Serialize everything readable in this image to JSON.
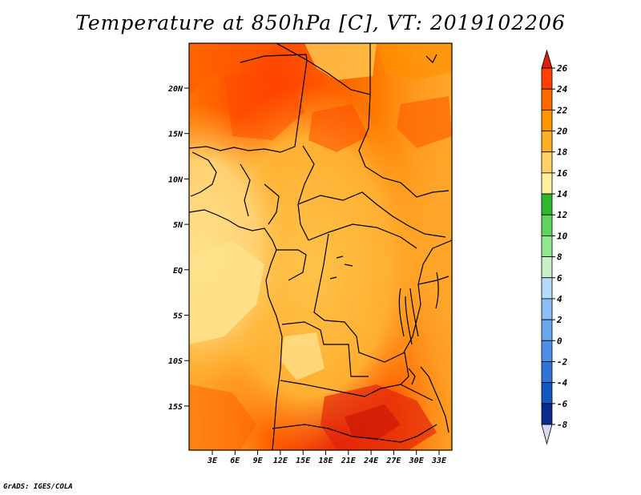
{
  "title": "Temperature at 850hPa [C], VT: 2019102206",
  "credit": "GrADS: IGES/COLA",
  "map": {
    "lat_labels": [
      "20N",
      "15N",
      "10N",
      "5N",
      "EQ",
      "5S",
      "10S",
      "15S"
    ],
    "lon_labels": [
      "3E",
      "6E",
      "9E",
      "12E",
      "15E",
      "18E",
      "21E",
      "24E",
      "27E",
      "30E",
      "33E"
    ]
  },
  "colorbar": {
    "levels": [
      "26",
      "24",
      "22",
      "20",
      "18",
      "16",
      "14",
      "12",
      "10",
      "8",
      "6",
      "4",
      "2",
      "0",
      "-2",
      "-4",
      "-6",
      "-8"
    ],
    "colors": [
      "#dc1e0a",
      "#ff4000",
      "#ff6a00",
      "#ff9400",
      "#ffae28",
      "#ffd064",
      "#fff0a0",
      "#2eb82e",
      "#5fd35f",
      "#8fe88f",
      "#c8f0c8",
      "#b4dcfa",
      "#8cbff5",
      "#6aa7f0",
      "#4d8fe6",
      "#2e74d6",
      "#1456c0",
      "#0a2a8c",
      "#08105a"
    ],
    "top_arrow_color": "#dc1e0a",
    "bottom_arrow_color": "#d8d8f0"
  }
}
